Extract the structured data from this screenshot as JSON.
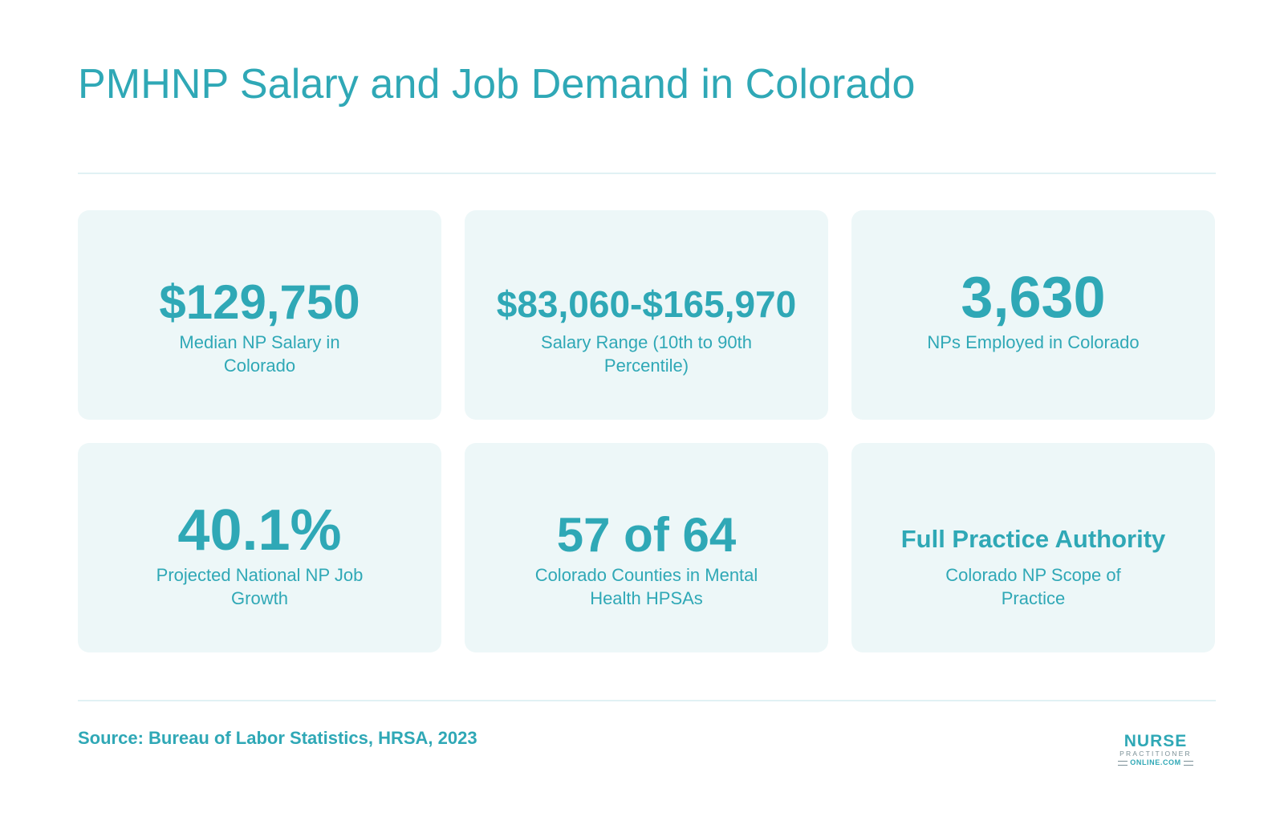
{
  "title": "PMHNP Salary and Job Demand in Colorado",
  "stats": [
    {
      "value": "$129,750",
      "label": "Median NP Salary in Colorado"
    },
    {
      "value": "$83,060-$165,970",
      "label": "Salary Range (10th to 90th Percentile)"
    },
    {
      "value": "3,630",
      "label": "NPs Employed in Colorado"
    },
    {
      "value": "40.1%",
      "label": "Projected National NP Job Growth"
    },
    {
      "value": "57 of 64",
      "label": "Colorado Counties in Mental Health HPSAs"
    },
    {
      "value": "Full Practice Authority",
      "label": "Colorado NP Scope of Practice"
    }
  ],
  "source": "Source: Bureau of Labor Statistics, HRSA, 2023",
  "logo": {
    "line1": "NURSE",
    "line2": "PRACTITIONER",
    "line3": "ONLINE.COM"
  },
  "colors": {
    "accent": "#2fa8b6",
    "card_background": "#edf7f8",
    "divider": "#e1f1f4"
  }
}
